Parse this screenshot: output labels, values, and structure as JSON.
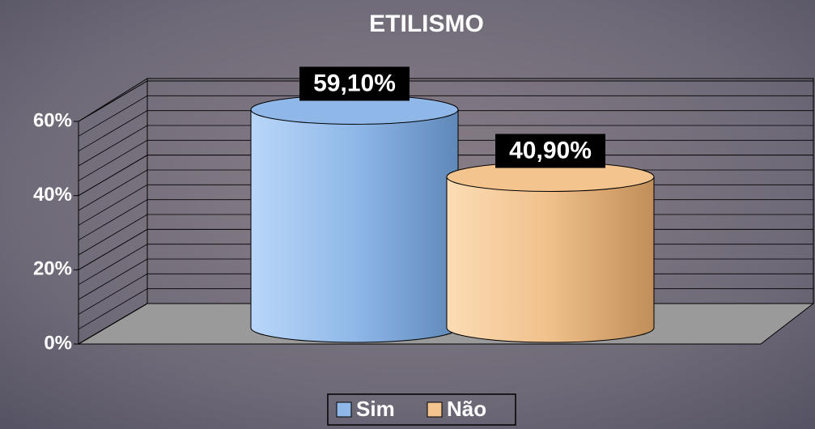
{
  "chart_data": {
    "type": "bar3d",
    "title": "ETILISMO",
    "categories": [
      null
    ],
    "series": [
      {
        "name": "Sim",
        "color": "#8fb8e8",
        "values": [
          59.1
        ],
        "value_labels": [
          "59,10%"
        ]
      },
      {
        "name": "Não",
        "color": "#f4c48e",
        "values": [
          40.9
        ],
        "value_labels": [
          "40,90%"
        ]
      }
    ],
    "ylim": [
      0,
      60
    ],
    "yticks": [
      {
        "value": 0,
        "label": "0%"
      },
      {
        "value": 20,
        "label": "20%"
      },
      {
        "value": 40,
        "label": "40%"
      },
      {
        "value": 60,
        "label": "60%"
      }
    ],
    "minor_yticks": [
      4,
      8,
      12,
      16,
      24,
      28,
      32,
      36,
      44,
      48,
      52,
      56
    ],
    "grid": true,
    "legend": "bottom"
  }
}
